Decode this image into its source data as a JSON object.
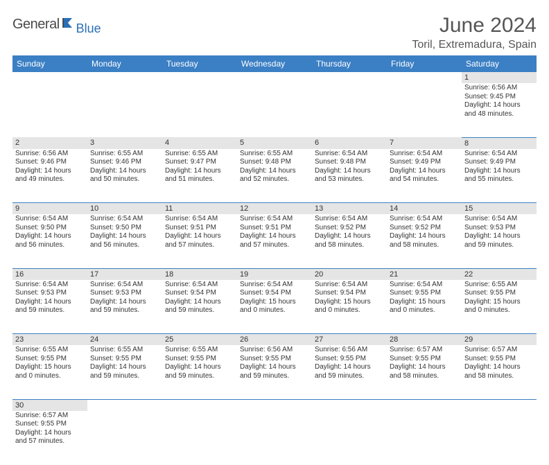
{
  "logo": {
    "main": "General",
    "sub": "Blue"
  },
  "title": "June 2024",
  "location": "Toril, Extremadura, Spain",
  "colors": {
    "header_bg": "#3b7fc4",
    "header_text": "#ffffff",
    "daynum_bg": "#e5e5e5",
    "border": "#3b7fc4",
    "text": "#333333",
    "logo_gray": "#4a4a4a",
    "logo_blue": "#2a6fb5"
  },
  "day_headers": [
    "Sunday",
    "Monday",
    "Tuesday",
    "Wednesday",
    "Thursday",
    "Friday",
    "Saturday"
  ],
  "weeks": [
    {
      "nums": [
        "",
        "",
        "",
        "",
        "",
        "",
        "1"
      ],
      "cells": [
        null,
        null,
        null,
        null,
        null,
        null,
        {
          "sr": "Sunrise: 6:56 AM",
          "ss": "Sunset: 9:45 PM",
          "dl": "Daylight: 14 hours and 48 minutes."
        }
      ]
    },
    {
      "nums": [
        "2",
        "3",
        "4",
        "5",
        "6",
        "7",
        "8"
      ],
      "cells": [
        {
          "sr": "Sunrise: 6:56 AM",
          "ss": "Sunset: 9:46 PM",
          "dl": "Daylight: 14 hours and 49 minutes."
        },
        {
          "sr": "Sunrise: 6:55 AM",
          "ss": "Sunset: 9:46 PM",
          "dl": "Daylight: 14 hours and 50 minutes."
        },
        {
          "sr": "Sunrise: 6:55 AM",
          "ss": "Sunset: 9:47 PM",
          "dl": "Daylight: 14 hours and 51 minutes."
        },
        {
          "sr": "Sunrise: 6:55 AM",
          "ss": "Sunset: 9:48 PM",
          "dl": "Daylight: 14 hours and 52 minutes."
        },
        {
          "sr": "Sunrise: 6:54 AM",
          "ss": "Sunset: 9:48 PM",
          "dl": "Daylight: 14 hours and 53 minutes."
        },
        {
          "sr": "Sunrise: 6:54 AM",
          "ss": "Sunset: 9:49 PM",
          "dl": "Daylight: 14 hours and 54 minutes."
        },
        {
          "sr": "Sunrise: 6:54 AM",
          "ss": "Sunset: 9:49 PM",
          "dl": "Daylight: 14 hours and 55 minutes."
        }
      ]
    },
    {
      "nums": [
        "9",
        "10",
        "11",
        "12",
        "13",
        "14",
        "15"
      ],
      "cells": [
        {
          "sr": "Sunrise: 6:54 AM",
          "ss": "Sunset: 9:50 PM",
          "dl": "Daylight: 14 hours and 56 minutes."
        },
        {
          "sr": "Sunrise: 6:54 AM",
          "ss": "Sunset: 9:50 PM",
          "dl": "Daylight: 14 hours and 56 minutes."
        },
        {
          "sr": "Sunrise: 6:54 AM",
          "ss": "Sunset: 9:51 PM",
          "dl": "Daylight: 14 hours and 57 minutes."
        },
        {
          "sr": "Sunrise: 6:54 AM",
          "ss": "Sunset: 9:51 PM",
          "dl": "Daylight: 14 hours and 57 minutes."
        },
        {
          "sr": "Sunrise: 6:54 AM",
          "ss": "Sunset: 9:52 PM",
          "dl": "Daylight: 14 hours and 58 minutes."
        },
        {
          "sr": "Sunrise: 6:54 AM",
          "ss": "Sunset: 9:52 PM",
          "dl": "Daylight: 14 hours and 58 minutes."
        },
        {
          "sr": "Sunrise: 6:54 AM",
          "ss": "Sunset: 9:53 PM",
          "dl": "Daylight: 14 hours and 59 minutes."
        }
      ]
    },
    {
      "nums": [
        "16",
        "17",
        "18",
        "19",
        "20",
        "21",
        "22"
      ],
      "cells": [
        {
          "sr": "Sunrise: 6:54 AM",
          "ss": "Sunset: 9:53 PM",
          "dl": "Daylight: 14 hours and 59 minutes."
        },
        {
          "sr": "Sunrise: 6:54 AM",
          "ss": "Sunset: 9:53 PM",
          "dl": "Daylight: 14 hours and 59 minutes."
        },
        {
          "sr": "Sunrise: 6:54 AM",
          "ss": "Sunset: 9:54 PM",
          "dl": "Daylight: 14 hours and 59 minutes."
        },
        {
          "sr": "Sunrise: 6:54 AM",
          "ss": "Sunset: 9:54 PM",
          "dl": "Daylight: 15 hours and 0 minutes."
        },
        {
          "sr": "Sunrise: 6:54 AM",
          "ss": "Sunset: 9:54 PM",
          "dl": "Daylight: 15 hours and 0 minutes."
        },
        {
          "sr": "Sunrise: 6:54 AM",
          "ss": "Sunset: 9:55 PM",
          "dl": "Daylight: 15 hours and 0 minutes."
        },
        {
          "sr": "Sunrise: 6:55 AM",
          "ss": "Sunset: 9:55 PM",
          "dl": "Daylight: 15 hours and 0 minutes."
        }
      ]
    },
    {
      "nums": [
        "23",
        "24",
        "25",
        "26",
        "27",
        "28",
        "29"
      ],
      "cells": [
        {
          "sr": "Sunrise: 6:55 AM",
          "ss": "Sunset: 9:55 PM",
          "dl": "Daylight: 15 hours and 0 minutes."
        },
        {
          "sr": "Sunrise: 6:55 AM",
          "ss": "Sunset: 9:55 PM",
          "dl": "Daylight: 14 hours and 59 minutes."
        },
        {
          "sr": "Sunrise: 6:55 AM",
          "ss": "Sunset: 9:55 PM",
          "dl": "Daylight: 14 hours and 59 minutes."
        },
        {
          "sr": "Sunrise: 6:56 AM",
          "ss": "Sunset: 9:55 PM",
          "dl": "Daylight: 14 hours and 59 minutes."
        },
        {
          "sr": "Sunrise: 6:56 AM",
          "ss": "Sunset: 9:55 PM",
          "dl": "Daylight: 14 hours and 59 minutes."
        },
        {
          "sr": "Sunrise: 6:57 AM",
          "ss": "Sunset: 9:55 PM",
          "dl": "Daylight: 14 hours and 58 minutes."
        },
        {
          "sr": "Sunrise: 6:57 AM",
          "ss": "Sunset: 9:55 PM",
          "dl": "Daylight: 14 hours and 58 minutes."
        }
      ]
    },
    {
      "nums": [
        "30",
        "",
        "",
        "",
        "",
        "",
        ""
      ],
      "cells": [
        {
          "sr": "Sunrise: 6:57 AM",
          "ss": "Sunset: 9:55 PM",
          "dl": "Daylight: 14 hours and 57 minutes."
        },
        null,
        null,
        null,
        null,
        null,
        null
      ]
    }
  ]
}
